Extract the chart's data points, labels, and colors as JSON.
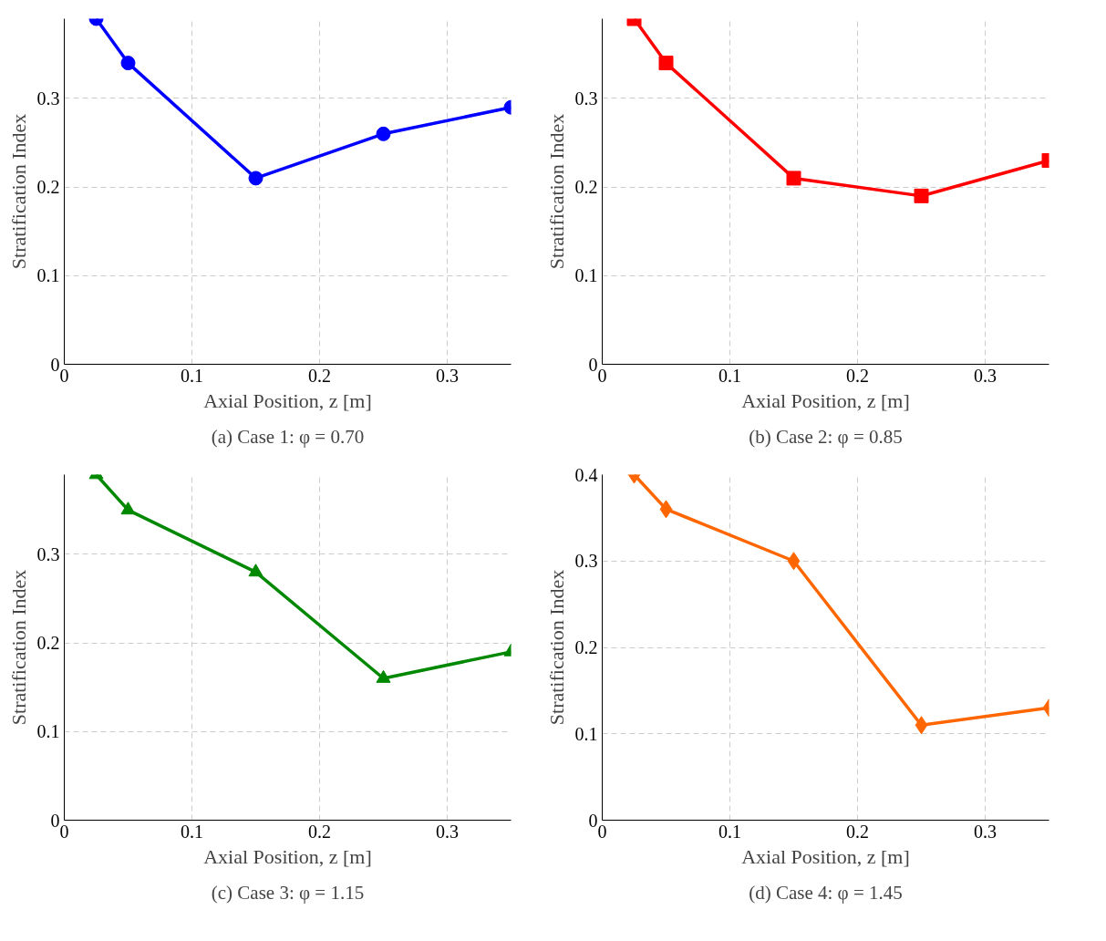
{
  "chart_data": [
    {
      "type": "line",
      "xlabel": "Axial Position, z [m]",
      "ylabel": "Stratification Index",
      "annotations": [
        "(a) Case 1: φ = 0.70"
      ],
      "x": [
        0.025,
        0.05,
        0.15,
        0.25,
        0.35
      ],
      "xlim": [
        0,
        0.35
      ],
      "xticks": [
        0,
        0.1,
        0.2,
        0.3
      ],
      "ylim": [
        0,
        0.39
      ],
      "yticks": [
        0,
        0.1,
        0.2,
        0.3
      ],
      "grid": true,
      "marker": "circle",
      "line_style": "solid",
      "series": [
        {
          "color": "#0000ff",
          "values": [
            0.39,
            0.34,
            0.21,
            0.26,
            0.29
          ]
        }
      ]
    },
    {
      "type": "line",
      "xlabel": "Axial Position, z [m]",
      "ylabel": "Stratification Index",
      "annotations": [
        "(b) Case 2: φ = 0.85"
      ],
      "x": [
        0.025,
        0.05,
        0.15,
        0.25,
        0.35
      ],
      "xlim": [
        0,
        0.35
      ],
      "xticks": [
        0,
        0.1,
        0.2,
        0.3
      ],
      "ylim": [
        0,
        0.39
      ],
      "yticks": [
        0,
        0.1,
        0.2,
        0.3
      ],
      "grid": true,
      "marker": "square",
      "line_style": "solid",
      "series": [
        {
          "color": "#ff0000",
          "values": [
            0.39,
            0.34,
            0.21,
            0.19,
            0.23
          ]
        }
      ]
    },
    {
      "type": "line",
      "xlabel": "Axial Position, z [m]",
      "ylabel": "Stratification Index",
      "annotations": [
        "(c) Case 3: φ = 1.15"
      ],
      "x": [
        0.025,
        0.05,
        0.15,
        0.25,
        0.35
      ],
      "xlim": [
        0,
        0.35
      ],
      "xticks": [
        0,
        0.1,
        0.2,
        0.3
      ],
      "ylim": [
        0,
        0.39
      ],
      "yticks": [
        0,
        0.1,
        0.2,
        0.3
      ],
      "grid": true,
      "marker": "triangle",
      "line_style": "solid",
      "series": [
        {
          "color": "#008800",
          "values": [
            0.39,
            0.35,
            0.28,
            0.16,
            0.19
          ]
        }
      ]
    },
    {
      "type": "line",
      "xlabel": "Axial Position, z [m]",
      "ylabel": "Stratification Index",
      "annotations": [
        "(d) Case 4: φ = 1.45"
      ],
      "x": [
        0.025,
        0.05,
        0.15,
        0.25,
        0.35
      ],
      "xlim": [
        0,
        0.35
      ],
      "xticks": [
        0,
        0.1,
        0.2,
        0.3
      ],
      "ylim": [
        0,
        0.4
      ],
      "yticks": [
        0,
        0.1,
        0.2,
        0.3,
        0.4
      ],
      "grid": true,
      "marker": "diamond",
      "line_style": "solid",
      "series": [
        {
          "color": "#ff6600",
          "values": [
            0.4,
            0.36,
            0.3,
            0.11,
            0.13
          ]
        }
      ]
    }
  ]
}
